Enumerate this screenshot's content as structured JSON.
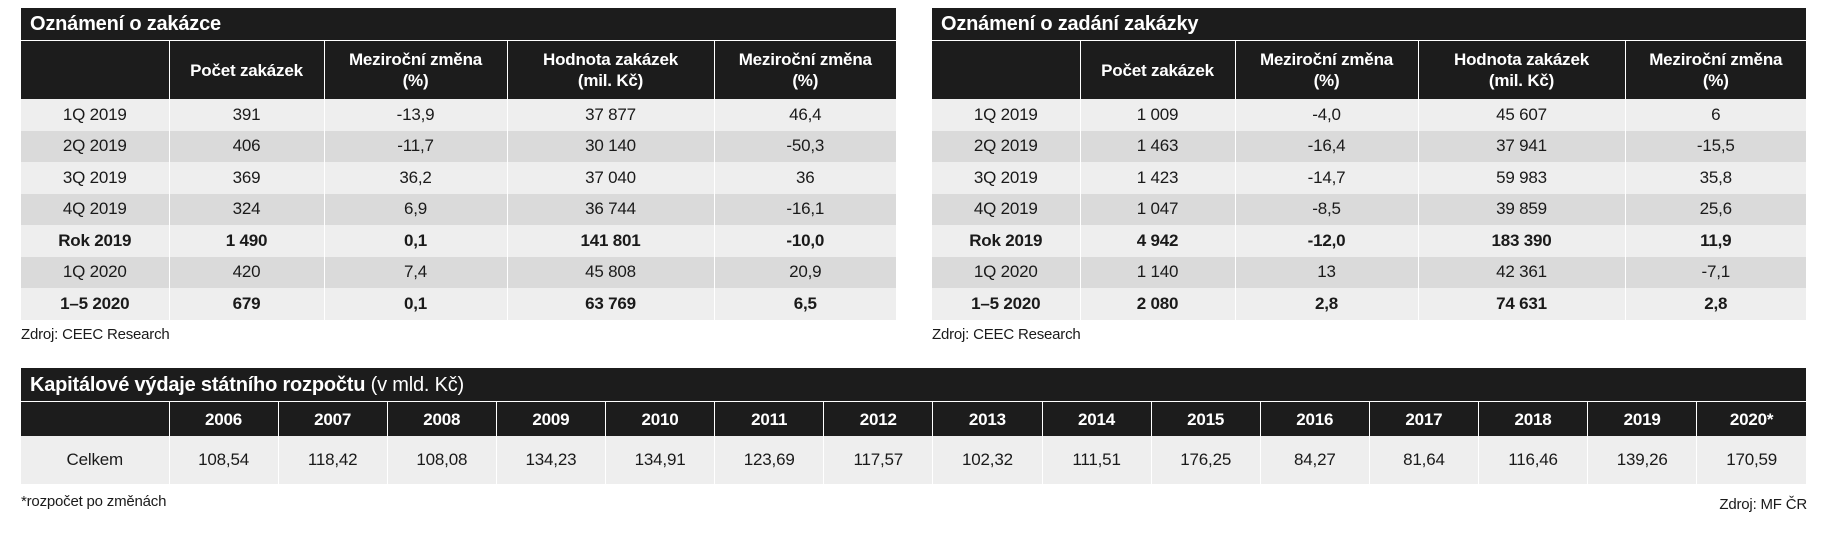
{
  "left_table": {
    "title": "Oznámení o zakázce",
    "headers": [
      "",
      "Počet zakázek",
      "Meziroční změna (%)",
      "Hodnota zakázek (mil. Kč)",
      "Meziroční změna (%)"
    ],
    "rows": [
      [
        "1Q 2019",
        "391",
        "-13,9",
        "37 877",
        "46,4"
      ],
      [
        "2Q 2019",
        "406",
        "-11,7",
        "30 140",
        "-50,3"
      ],
      [
        "3Q 2019",
        "369",
        "36,2",
        "37 040",
        "36"
      ],
      [
        "4Q 2019",
        "324",
        "6,9",
        "36 744",
        "-16,1"
      ],
      [
        "Rok 2019",
        "1 490",
        "0,1",
        "141 801",
        "-10,0"
      ],
      [
        "1Q 2020",
        "420",
        "7,4",
        "45 808",
        "20,9"
      ],
      [
        "1–5 2020",
        "679",
        "0,1",
        "63 769",
        "6,5"
      ]
    ],
    "bold_rows": [
      4,
      6
    ],
    "source": "Zdroj: CEEC Research"
  },
  "right_table": {
    "title": "Oznámení o zadání zakázky",
    "headers": [
      "",
      "Počet zakázek",
      "Meziroční změna (%)",
      "Hodnota zakázek (mil. Kč)",
      "Meziroční změna (%)"
    ],
    "rows": [
      [
        "1Q 2019",
        "1 009",
        "-4,0",
        "45 607",
        "6"
      ],
      [
        "2Q 2019",
        "1 463",
        "-16,4",
        "37 941",
        "-15,5"
      ],
      [
        "3Q 2019",
        "1 423",
        "-14,7",
        "59 983",
        "35,8"
      ],
      [
        "4Q 2019",
        "1 047",
        "-8,5",
        "39 859",
        "25,6"
      ],
      [
        "Rok 2019",
        "4 942",
        "-12,0",
        "183 390",
        "11,9"
      ],
      [
        "1Q 2020",
        "1 140",
        "13",
        "42 361",
        "-7,1"
      ],
      [
        "1–5 2020",
        "2 080",
        "2,8",
        "74 631",
        "2,8"
      ]
    ],
    "bold_rows": [
      4,
      6
    ],
    "source": "Zdroj: CEEC Research"
  },
  "capital_table": {
    "title_bold": "Kapitálové výdaje státního rozpočtu",
    "title_normal": " (v mld. Kč)",
    "years": [
      "2006",
      "2007",
      "2008",
      "2009",
      "2010",
      "2011",
      "2012",
      "2013",
      "2014",
      "2015",
      "2016",
      "2017",
      "2018",
      "2019",
      "2020*"
    ],
    "row_label": "Celkem",
    "values": [
      "108,54",
      "118,42",
      "108,08",
      "134,23",
      "134,91",
      "123,69",
      "117,57",
      "102,32",
      "111,51",
      "176,25",
      "84,27",
      "81,64",
      "116,46",
      "139,26",
      "170,59"
    ],
    "footnote": "*rozpočet po změnách",
    "source": "Zdroj: MF ČR"
  }
}
